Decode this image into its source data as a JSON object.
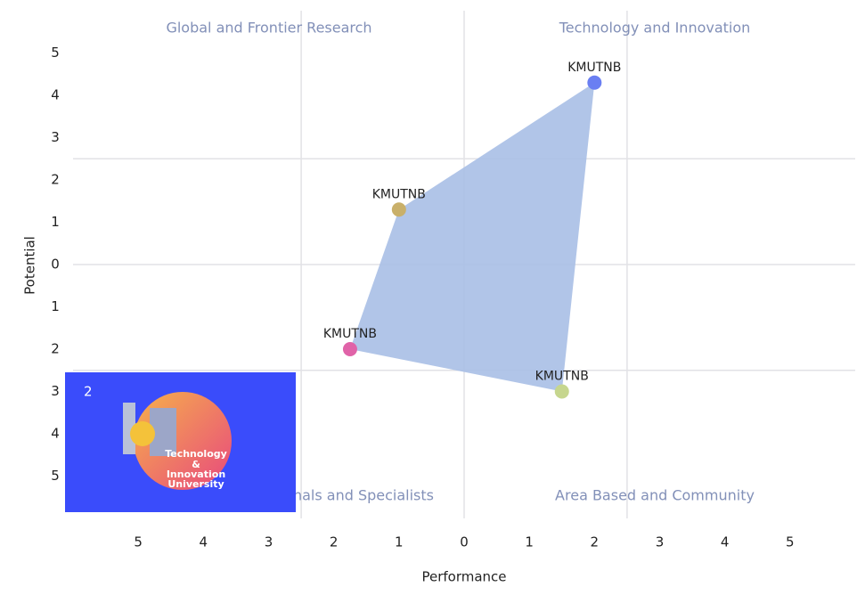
{
  "chart_data": {
    "type": "scatter",
    "x_label": "Performance",
    "y_label": "Potential",
    "x": [
      2,
      -1,
      -1.75,
      1.5
    ],
    "values": [
      4.3,
      1.3,
      -2,
      -3
    ],
    "point_labels": [
      "KMUTNB",
      "KMUTNB",
      "KMUTNB",
      "KMUTNB"
    ],
    "point_colors": [
      "#6a7ff2",
      "#c9b06a",
      "#e063a8",
      "#c6d68e"
    ],
    "area_color": "#a9bfe6",
    "xlim": [
      -6,
      6
    ],
    "ylim": [
      -6,
      6
    ],
    "xticks": [
      {
        "value": -5,
        "label": "5"
      },
      {
        "value": -4,
        "label": "4"
      },
      {
        "value": -3,
        "label": "3"
      },
      {
        "value": -2,
        "label": "2"
      },
      {
        "value": -1,
        "label": "1"
      },
      0,
      1,
      2,
      3,
      4,
      5
    ],
    "yticks": [
      5,
      4,
      3,
      2,
      1,
      0,
      {
        "value": -1,
        "label": "1"
      },
      {
        "value": -2,
        "label": "2"
      },
      {
        "value": -3,
        "label": "3"
      },
      {
        "value": -4,
        "label": "4"
      },
      {
        "value": -5,
        "label": "5"
      }
    ],
    "x_grid": [
      -2.5,
      0,
      2.5
    ],
    "y_grid": [
      2.5,
      0,
      -2.5
    ],
    "quadrant_labels": [
      "Global and Frontier Research",
      "Technology and Innovation",
      "nals and Specialists",
      "Area Based and Community"
    ]
  },
  "overlay": {
    "badge": "2",
    "logo_lines": [
      "Technology",
      "&",
      "Innovation",
      "University"
    ]
  }
}
